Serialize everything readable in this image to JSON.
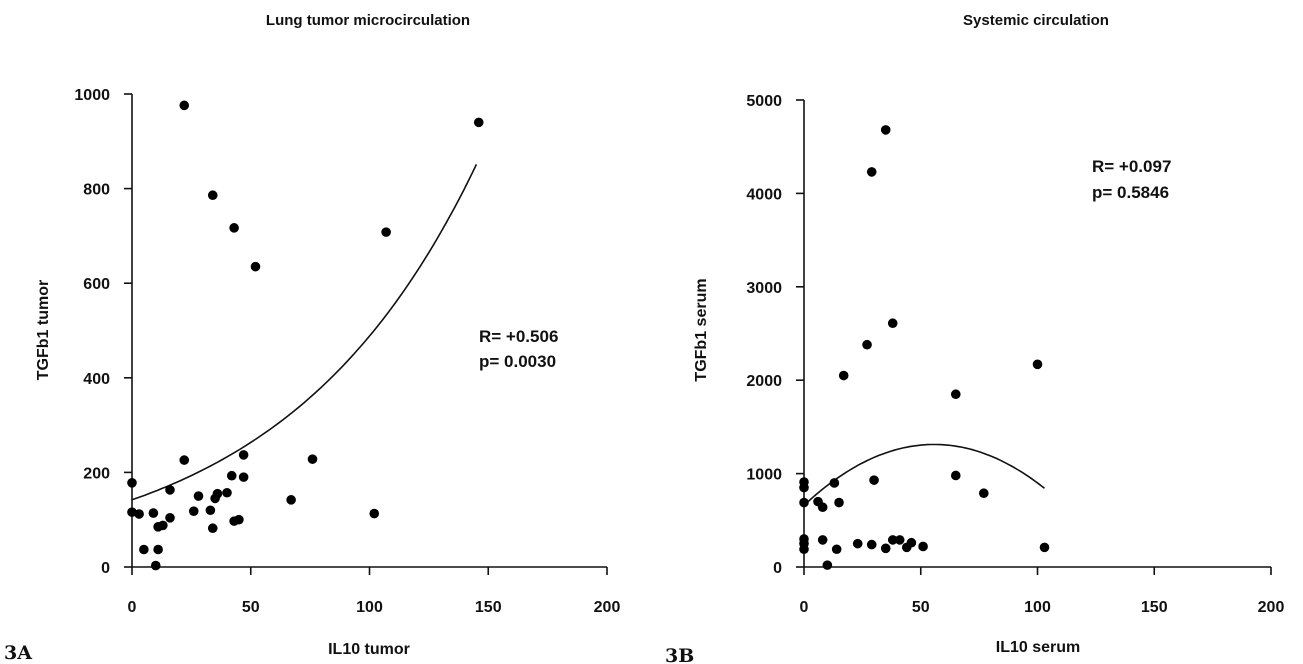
{
  "chart_data": [
    {
      "type": "scatter",
      "panel_label": "3A",
      "title": "Lung tumor microcirculation",
      "xlabel": "IL10 tumor",
      "ylabel": "TGFb1 tumor",
      "xlim": [
        0,
        200
      ],
      "ylim": [
        0,
        1000
      ],
      "xticks": [
        "0",
        "50",
        "100",
        "150",
        "200"
      ],
      "yticks": [
        "0",
        "200",
        "400",
        "600",
        "800",
        "1000"
      ],
      "xtick_values": [
        0,
        50,
        100,
        150,
        200
      ],
      "ytick_values": [
        0,
        200,
        400,
        600,
        800,
        1000
      ],
      "stat_r": "R= +0.506",
      "stat_p": "p= 0.0030",
      "fit": {
        "type": "exponential",
        "x_range": [
          0,
          145
        ],
        "a": 142,
        "b": 0.01235
      },
      "points": [
        {
          "x": 0,
          "y": 178
        },
        {
          "x": 0,
          "y": 116
        },
        {
          "x": 3,
          "y": 112
        },
        {
          "x": 5,
          "y": 37
        },
        {
          "x": 9,
          "y": 114
        },
        {
          "x": 10,
          "y": 3
        },
        {
          "x": 11,
          "y": 37
        },
        {
          "x": 11,
          "y": 85
        },
        {
          "x": 13,
          "y": 88
        },
        {
          "x": 16,
          "y": 163
        },
        {
          "x": 16,
          "y": 104
        },
        {
          "x": 22,
          "y": 976
        },
        {
          "x": 22,
          "y": 226
        },
        {
          "x": 26,
          "y": 118
        },
        {
          "x": 28,
          "y": 150
        },
        {
          "x": 33,
          "y": 120
        },
        {
          "x": 34,
          "y": 786
        },
        {
          "x": 34,
          "y": 82
        },
        {
          "x": 35,
          "y": 145
        },
        {
          "x": 36,
          "y": 155
        },
        {
          "x": 40,
          "y": 157
        },
        {
          "x": 42,
          "y": 193
        },
        {
          "x": 43,
          "y": 717
        },
        {
          "x": 43,
          "y": 97
        },
        {
          "x": 45,
          "y": 100
        },
        {
          "x": 47,
          "y": 237
        },
        {
          "x": 47,
          "y": 190
        },
        {
          "x": 52,
          "y": 635
        },
        {
          "x": 67,
          "y": 142
        },
        {
          "x": 76,
          "y": 228
        },
        {
          "x": 102,
          "y": 113
        },
        {
          "x": 107,
          "y": 708
        },
        {
          "x": 146,
          "y": 940
        }
      ]
    },
    {
      "type": "scatter",
      "panel_label": "3B",
      "title": "Systemic circulation",
      "xlabel": "IL10 serum",
      "ylabel": "TGFb1 serum",
      "xlim": [
        0,
        200
      ],
      "ylim": [
        0,
        5000
      ],
      "xticks": [
        "0",
        "50",
        "100",
        "150",
        "200"
      ],
      "yticks": [
        "0",
        "1000",
        "2000",
        "3000",
        "4000",
        "5000"
      ],
      "xtick_values": [
        0,
        50,
        100,
        150,
        200
      ],
      "ytick_values": [
        0,
        1000,
        2000,
        3000,
        4000,
        5000
      ],
      "stat_r": "R= +0.097",
      "stat_p": "p= 0.5846",
      "fit": {
        "type": "quadratic",
        "x_range": [
          0,
          103
        ],
        "a": 660,
        "b": 23.4,
        "c": -0.21
      },
      "points": [
        {
          "x": 0,
          "y": 910
        },
        {
          "x": 0,
          "y": 850
        },
        {
          "x": 0,
          "y": 690
        },
        {
          "x": 0,
          "y": 300
        },
        {
          "x": 0,
          "y": 250
        },
        {
          "x": 0,
          "y": 190
        },
        {
          "x": 6,
          "y": 700
        },
        {
          "x": 8,
          "y": 640
        },
        {
          "x": 8,
          "y": 290
        },
        {
          "x": 10,
          "y": 20
        },
        {
          "x": 13,
          "y": 900
        },
        {
          "x": 14,
          "y": 190
        },
        {
          "x": 15,
          "y": 690
        },
        {
          "x": 17,
          "y": 2050
        },
        {
          "x": 23,
          "y": 250
        },
        {
          "x": 27,
          "y": 2380
        },
        {
          "x": 29,
          "y": 4230
        },
        {
          "x": 29,
          "y": 240
        },
        {
          "x": 30,
          "y": 930
        },
        {
          "x": 35,
          "y": 4680
        },
        {
          "x": 35,
          "y": 200
        },
        {
          "x": 38,
          "y": 2610
        },
        {
          "x": 38,
          "y": 290
        },
        {
          "x": 41,
          "y": 290
        },
        {
          "x": 44,
          "y": 210
        },
        {
          "x": 46,
          "y": 260
        },
        {
          "x": 51,
          "y": 220
        },
        {
          "x": 65,
          "y": 1850
        },
        {
          "x": 65,
          "y": 980
        },
        {
          "x": 77,
          "y": 790
        },
        {
          "x": 100,
          "y": 2170
        },
        {
          "x": 103,
          "y": 210
        }
      ]
    }
  ]
}
